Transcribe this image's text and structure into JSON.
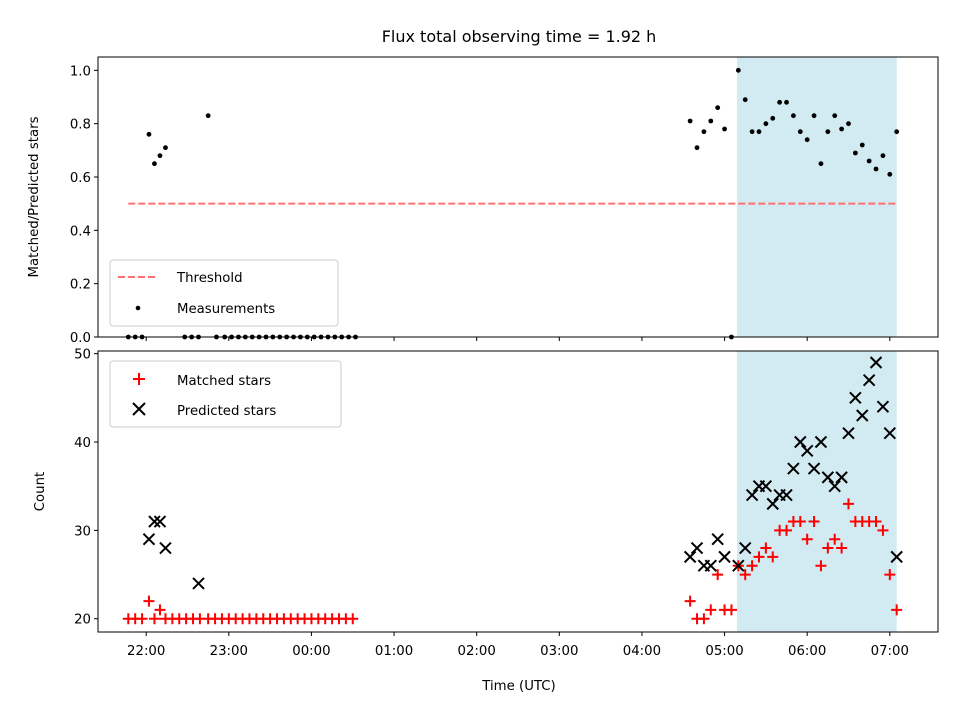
{
  "chart_data": [
    {
      "type": "scatter",
      "title": "Flux total observing time = 1.92 h",
      "xlabel": "",
      "ylabel": "Matched/Predicted stars",
      "xlim": [
        "21:25",
        "07:35"
      ],
      "ylim": [
        0,
        1.05
      ],
      "yticks": [
        "0.0",
        "0.2",
        "0.4",
        "0.6",
        "0.8",
        "1.0"
      ],
      "ytick_values": [
        0,
        0.2,
        0.4,
        0.6,
        0.8,
        1.0
      ],
      "shaded_region": {
        "x": [
          "05:09",
          "07:05"
        ],
        "color": "#add8e6"
      },
      "legend": {
        "placement": "lower-left",
        "entries": [
          "Threshold",
          "Measurements"
        ]
      },
      "series": [
        {
          "name": "Threshold",
          "kind": "dashed-line",
          "color": "#ff7070",
          "x": [
            "21:47",
            "07:05"
          ],
          "y": [
            0.5,
            0.5
          ]
        },
        {
          "name": "Measurements",
          "kind": "dots",
          "color": "#000000",
          "x": [
            "21:47",
            "21:52",
            "21:57",
            "22:02",
            "22:06",
            "22:10",
            "22:14",
            "22:28",
            "22:33",
            "22:38",
            "22:45",
            "22:51",
            "22:57",
            "23:02",
            "23:07",
            "23:12",
            "23:17",
            "23:22",
            "23:27",
            "23:32",
            "23:37",
            "23:42",
            "23:47",
            "23:52",
            "23:57",
            "00:02",
            "00:07",
            "00:12",
            "00:17",
            "00:22",
            "00:27",
            "00:32",
            "04:35",
            "04:40",
            "04:45",
            "04:50",
            "04:55",
            "05:00",
            "05:05",
            "05:10",
            "05:15",
            "05:20",
            "05:25",
            "05:30",
            "05:35",
            "05:40",
            "05:45",
            "05:50",
            "05:55",
            "06:00",
            "06:05",
            "06:10",
            "06:15",
            "06:20",
            "06:25",
            "06:30",
            "06:35",
            "06:40",
            "06:45",
            "06:50",
            "06:55",
            "07:00",
            "07:05"
          ],
          "y": [
            0.0,
            0.0,
            0.0,
            0.76,
            0.65,
            0.68,
            0.71,
            0.0,
            0.0,
            0.0,
            0.83,
            0.0,
            0.0,
            0.0,
            0.0,
            0.0,
            0.0,
            0.0,
            0.0,
            0.0,
            0.0,
            0.0,
            0.0,
            0.0,
            0.0,
            0.0,
            0.0,
            0.0,
            0.0,
            0.0,
            0.0,
            0.0,
            0.81,
            0.71,
            0.77,
            0.81,
            0.86,
            0.78,
            0.0,
            1.0,
            0.89,
            0.77,
            0.77,
            0.8,
            0.82,
            0.88,
            0.88,
            0.83,
            0.77,
            0.74,
            0.83,
            0.65,
            0.77,
            0.83,
            0.78,
            0.8,
            0.69,
            0.72,
            0.66,
            0.63,
            0.68,
            0.61,
            0.77
          ]
        }
      ]
    },
    {
      "type": "scatter",
      "title": "",
      "xlabel": "Time (UTC)",
      "ylabel": "Count",
      "xlim": [
        "21:25",
        "07:35"
      ],
      "ylim": [
        18.5,
        50.3
      ],
      "xticks": [
        "22:00",
        "23:00",
        "00:00",
        "01:00",
        "02:00",
        "03:00",
        "04:00",
        "05:00",
        "06:00",
        "07:00"
      ],
      "yticks": [
        "20",
        "30",
        "40",
        "50"
      ],
      "ytick_values": [
        20,
        30,
        40,
        50
      ],
      "shaded_region": {
        "x": [
          "05:09",
          "07:05"
        ],
        "color": "#add8e6"
      },
      "legend": {
        "placement": "top-left",
        "entries": [
          "Matched stars",
          "Predicted stars"
        ]
      },
      "series": [
        {
          "name": "Matched stars",
          "kind": "plus",
          "color": "#ff0000",
          "x": [
            "21:47",
            "21:52",
            "21:57",
            "22:02",
            "22:06",
            "22:10",
            "22:14",
            "22:19",
            "22:24",
            "22:29",
            "22:34",
            "22:39",
            "22:45",
            "22:50",
            "22:55",
            "23:00",
            "23:05",
            "23:10",
            "23:15",
            "23:20",
            "23:25",
            "23:30",
            "23:35",
            "23:40",
            "23:45",
            "23:50",
            "23:55",
            "00:00",
            "00:05",
            "00:10",
            "00:15",
            "00:20",
            "00:25",
            "00:30",
            "04:35",
            "04:40",
            "04:45",
            "04:50",
            "04:55",
            "05:00",
            "05:05",
            "05:10",
            "05:15",
            "05:20",
            "05:25",
            "05:30",
            "05:35",
            "05:40",
            "05:45",
            "05:50",
            "05:55",
            "06:00",
            "06:05",
            "06:10",
            "06:15",
            "06:20",
            "06:25",
            "06:30",
            "06:35",
            "06:40",
            "06:45",
            "06:50",
            "06:55",
            "07:00",
            "07:05"
          ],
          "y": [
            20,
            20,
            20,
            22,
            20,
            21,
            20,
            20,
            20,
            20,
            20,
            20,
            20,
            20,
            20,
            20,
            20,
            20,
            20,
            20,
            20,
            20,
            20,
            20,
            20,
            20,
            20,
            20,
            20,
            20,
            20,
            20,
            20,
            20,
            22,
            20,
            20,
            21,
            25,
            21,
            21,
            26,
            25,
            26,
            27,
            28,
            27,
            30,
            30,
            31,
            31,
            29,
            31,
            26,
            28,
            29,
            28,
            33,
            31,
            31,
            31,
            31,
            30,
            25,
            21
          ]
        },
        {
          "name": "Predicted stars",
          "kind": "x",
          "color": "#000000",
          "x": [
            "22:02",
            "22:06",
            "22:10",
            "22:14",
            "22:38",
            "04:35",
            "04:40",
            "04:45",
            "04:50",
            "04:55",
            "05:00",
            "05:10",
            "05:15",
            "05:20",
            "05:25",
            "05:30",
            "05:35",
            "05:40",
            "05:45",
            "05:50",
            "05:55",
            "06:00",
            "06:05",
            "06:10",
            "06:15",
            "06:20",
            "06:25",
            "06:30",
            "06:35",
            "06:40",
            "06:45",
            "06:50",
            "06:55",
            "07:00",
            "07:05"
          ],
          "y": [
            29,
            31,
            31,
            28,
            24,
            27,
            28,
            26,
            26,
            29,
            27,
            26,
            28,
            34,
            35,
            35,
            33,
            34,
            34,
            37,
            40,
            39,
            37,
            40,
            36,
            35,
            36,
            41,
            45,
            43,
            47,
            49,
            44,
            41,
            27
          ]
        }
      ]
    }
  ]
}
